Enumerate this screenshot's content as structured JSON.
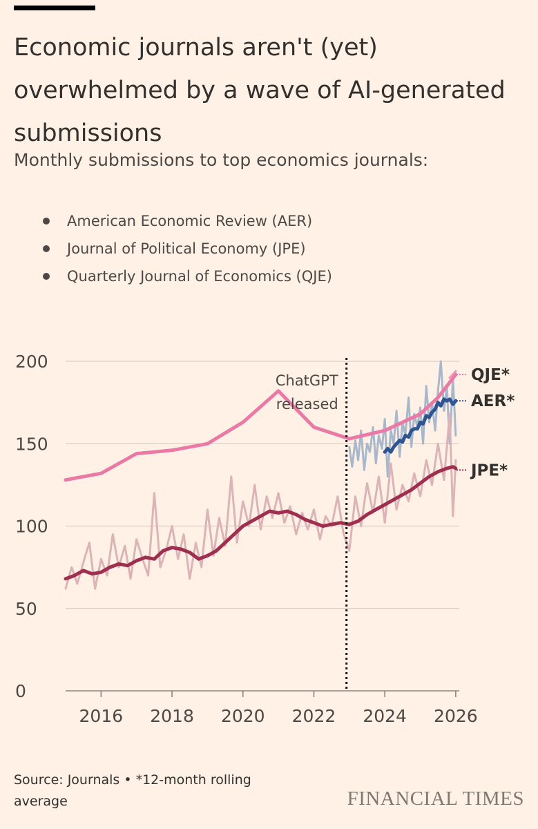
{
  "page": {
    "title": "Economic journals aren't (yet) overwhelmed by a wave of AI-generated submissions",
    "subtitle": "Monthly submissions to top economics journals:",
    "legend": [
      "American Economic Review (AER)",
      "Journal of Political Economy (JPE)",
      "Quarterly Journal of Economics (QJE)"
    ],
    "source": "Source: Journals • *12-month rolling average",
    "brand": "FINANCIAL TIMES"
  },
  "colors": {
    "background": "#fff1e5",
    "grid": "#d9cdc3",
    "aer_raw": "#a8b8cc",
    "aer_avg": "#2e5592",
    "jpe_raw": "#dcb3b6",
    "jpe_avg": "#9e2f50",
    "qje_raw": "#ec9bbb",
    "qje_avg": "#ea7aa5",
    "text": "#4d4845"
  },
  "chart_data": {
    "type": "line",
    "x_range": [
      2015,
      2026.1
    ],
    "ylim": [
      0,
      200
    ],
    "y_ticks": [
      0,
      50,
      100,
      150,
      200
    ],
    "y_tick_labels": [
      "0",
      "50",
      "100",
      "150",
      "200"
    ],
    "x_ticks": [
      2016,
      2018,
      2020,
      2022,
      2024,
      2026
    ],
    "x_tick_labels": [
      "2016",
      "2018",
      "2020",
      "2022",
      "2024",
      "2026"
    ],
    "grid": "horizontal",
    "annotation": {
      "x": 2022.92,
      "label_lines": [
        "ChatGPT",
        "released"
      ]
    },
    "series": [
      {
        "name": "QJE*",
        "kind": "avg",
        "color": "#ea7aa5",
        "x": [
          2015,
          2016,
          2017,
          2018,
          2019,
          2020,
          2021,
          2022,
          2023,
          2024,
          2025,
          2025.5,
          2026
        ],
        "y": [
          128,
          132,
          144,
          146,
          150,
          163,
          182,
          160,
          153,
          158,
          168,
          178,
          192
        ]
      },
      {
        "name": "QJE",
        "kind": "raw",
        "color": "#ec9bbb",
        "x": [
          2025.83,
          2026
        ],
        "y": [
          190,
          194
        ]
      },
      {
        "name": "AER",
        "kind": "raw",
        "color": "#a8b8cc",
        "x": [
          2023.0,
          2023.08,
          2023.17,
          2023.25,
          2023.33,
          2023.42,
          2023.5,
          2023.58,
          2023.67,
          2023.75,
          2023.83,
          2023.92,
          2024.0,
          2024.08,
          2024.17,
          2024.25,
          2024.33,
          2024.42,
          2024.5,
          2024.58,
          2024.67,
          2024.75,
          2024.83,
          2024.92,
          2025.0,
          2025.08,
          2025.17,
          2025.25,
          2025.33,
          2025.42,
          2025.5,
          2025.58,
          2025.67,
          2025.75,
          2025.83,
          2025.92,
          2026.0
        ],
        "y": [
          148,
          136,
          152,
          140,
          158,
          134,
          150,
          145,
          160,
          138,
          155,
          147,
          165,
          130,
          158,
          150,
          170,
          142,
          163,
          155,
          178,
          148,
          168,
          160,
          172,
          150,
          185,
          163,
          175,
          158,
          182,
          200,
          170,
          185,
          150,
          190,
          155
        ]
      },
      {
        "name": "AER*",
        "kind": "avg",
        "color": "#2e5592",
        "x": [
          2024.0,
          2024.08,
          2024.17,
          2024.25,
          2024.33,
          2024.42,
          2024.5,
          2024.58,
          2024.67,
          2024.75,
          2024.83,
          2024.92,
          2025.0,
          2025.08,
          2025.17,
          2025.25,
          2025.33,
          2025.42,
          2025.5,
          2025.58,
          2025.67,
          2025.75,
          2025.83,
          2025.92,
          2026.0
        ],
        "y": [
          145,
          147,
          145,
          148,
          150,
          152,
          151,
          155,
          154,
          158,
          159,
          159,
          163,
          162,
          167,
          166,
          169,
          171,
          175,
          173,
          177,
          176,
          177,
          174,
          176
        ]
      },
      {
        "name": "JPE",
        "kind": "raw",
        "color": "#dcb3b6",
        "x": [
          2015.0,
          2015.17,
          2015.33,
          2015.5,
          2015.67,
          2015.83,
          2016.0,
          2016.17,
          2016.33,
          2016.5,
          2016.67,
          2016.83,
          2017.0,
          2017.17,
          2017.33,
          2017.5,
          2017.67,
          2017.83,
          2018.0,
          2018.17,
          2018.33,
          2018.5,
          2018.67,
          2018.83,
          2019.0,
          2019.17,
          2019.33,
          2019.5,
          2019.67,
          2019.83,
          2020.0,
          2020.17,
          2020.33,
          2020.5,
          2020.67,
          2020.83,
          2021.0,
          2021.17,
          2021.33,
          2021.5,
          2021.67,
          2021.83,
          2022.0,
          2022.17,
          2022.33,
          2022.5,
          2022.67,
          2022.83,
          2023.0,
          2023.17,
          2023.33,
          2023.5,
          2023.67,
          2023.83,
          2024.0,
          2024.17,
          2024.33,
          2024.5,
          2024.67,
          2024.83,
          2025.0,
          2025.17,
          2025.33,
          2025.5,
          2025.67,
          2025.83,
          2025.92,
          2026.0
        ],
        "y": [
          62,
          75,
          65,
          78,
          90,
          62,
          80,
          70,
          95,
          75,
          88,
          68,
          92,
          80,
          70,
          120,
          75,
          85,
          100,
          80,
          95,
          68,
          90,
          75,
          110,
          82,
          105,
          88,
          130,
          90,
          115,
          100,
          125,
          98,
          118,
          105,
          120,
          102,
          112,
          95,
          108,
          98,
          110,
          92,
          106,
          100,
          118,
          96,
          85,
          118,
          100,
          126,
          108,
          130,
          102,
          138,
          110,
          125,
          115,
          132,
          118,
          140,
          125,
          150,
          128,
          168,
          106,
          140
        ]
      },
      {
        "name": "JPE*",
        "kind": "avg",
        "color": "#9e2f50",
        "x": [
          2015.0,
          2015.25,
          2015.5,
          2015.75,
          2016.0,
          2016.25,
          2016.5,
          2016.75,
          2017.0,
          2017.25,
          2017.5,
          2017.75,
          2018.0,
          2018.25,
          2018.5,
          2018.75,
          2019.0,
          2019.25,
          2019.5,
          2019.75,
          2020.0,
          2020.25,
          2020.5,
          2020.75,
          2021.0,
          2021.25,
          2021.5,
          2021.75,
          2022.0,
          2022.25,
          2022.5,
          2022.75,
          2023.0,
          2023.25,
          2023.5,
          2023.75,
          2024.0,
          2024.25,
          2024.5,
          2024.75,
          2025.0,
          2025.25,
          2025.5,
          2025.75,
          2025.92,
          2026.0
        ],
        "y": [
          68,
          70,
          73,
          71,
          72,
          75,
          77,
          76,
          79,
          81,
          80,
          85,
          87,
          86,
          84,
          80,
          82,
          85,
          90,
          95,
          100,
          103,
          106,
          109,
          108,
          109,
          107,
          104,
          102,
          100,
          101,
          102,
          101,
          103,
          107,
          110,
          113,
          116,
          119,
          122,
          126,
          130,
          133,
          135,
          136,
          135
        ]
      }
    ],
    "end_labels": [
      {
        "series": "QJE*",
        "label": "QJE*",
        "y": 192
      },
      {
        "series": "AER*",
        "label": "AER*",
        "y": 176
      },
      {
        "series": "JPE*",
        "label": "JPE*",
        "y": 134
      }
    ]
  }
}
